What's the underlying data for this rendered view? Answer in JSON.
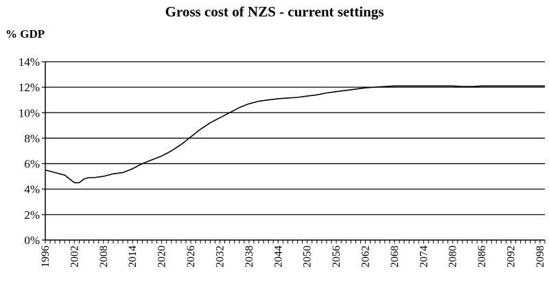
{
  "chart_data": {
    "type": "line",
    "title": "Gross cost of NZS - current settings",
    "ylabel": "% GDP",
    "xlabel": "",
    "xlim": [
      1996,
      2099
    ],
    "ylim": [
      0,
      14
    ],
    "yticks": [
      0,
      2,
      4,
      6,
      8,
      10,
      12,
      14
    ],
    "ytick_labels": [
      "0%",
      "2%",
      "4%",
      "6%",
      "8%",
      "10%",
      "12%",
      "14%"
    ],
    "xticks": [
      1996,
      2002,
      2008,
      2014,
      2020,
      2026,
      2032,
      2038,
      2044,
      2050,
      2056,
      2062,
      2068,
      2074,
      2080,
      2086,
      2092,
      2098
    ],
    "xtick_labels": [
      "1996",
      "2002",
      "2008",
      "2014",
      "2020",
      "2026",
      "2032",
      "2038",
      "2044",
      "2050",
      "2056",
      "2062",
      "2068",
      "2074",
      "2080",
      "2086",
      "2092",
      "2098"
    ],
    "grid": "horizontal",
    "legend": "none",
    "line_color": "#000000",
    "series": [
      {
        "x": [
          1996,
          1998,
          2000,
          2001,
          2002,
          2003,
          2004,
          2005,
          2006,
          2008,
          2010,
          2012,
          2014,
          2016,
          2018,
          2020,
          2022,
          2024,
          2026,
          2028,
          2030,
          2032,
          2034,
          2036,
          2038,
          2040,
          2042,
          2044,
          2046,
          2048,
          2050,
          2052,
          2054,
          2056,
          2058,
          2060,
          2062,
          2064,
          2066,
          2068,
          2070,
          2072,
          2074,
          2076,
          2078,
          2080,
          2082,
          2084,
          2086,
          2088,
          2090,
          2092,
          2094,
          2096,
          2098,
          2099
        ],
        "values": [
          5.5,
          5.3,
          5.1,
          4.8,
          4.5,
          4.5,
          4.8,
          4.9,
          4.9,
          5.0,
          5.2,
          5.3,
          5.6,
          6.0,
          6.3,
          6.6,
          7.0,
          7.5,
          8.1,
          8.7,
          9.2,
          9.6,
          10.0,
          10.4,
          10.7,
          10.9,
          11.0,
          11.1,
          11.15,
          11.2,
          11.3,
          11.4,
          11.55,
          11.65,
          11.75,
          11.85,
          11.95,
          12.0,
          12.05,
          12.1,
          12.1,
          12.1,
          12.1,
          12.1,
          12.1,
          12.1,
          12.05,
          12.05,
          12.1,
          12.1,
          12.1,
          12.1,
          12.1,
          12.1,
          12.1,
          12.1
        ]
      }
    ]
  }
}
